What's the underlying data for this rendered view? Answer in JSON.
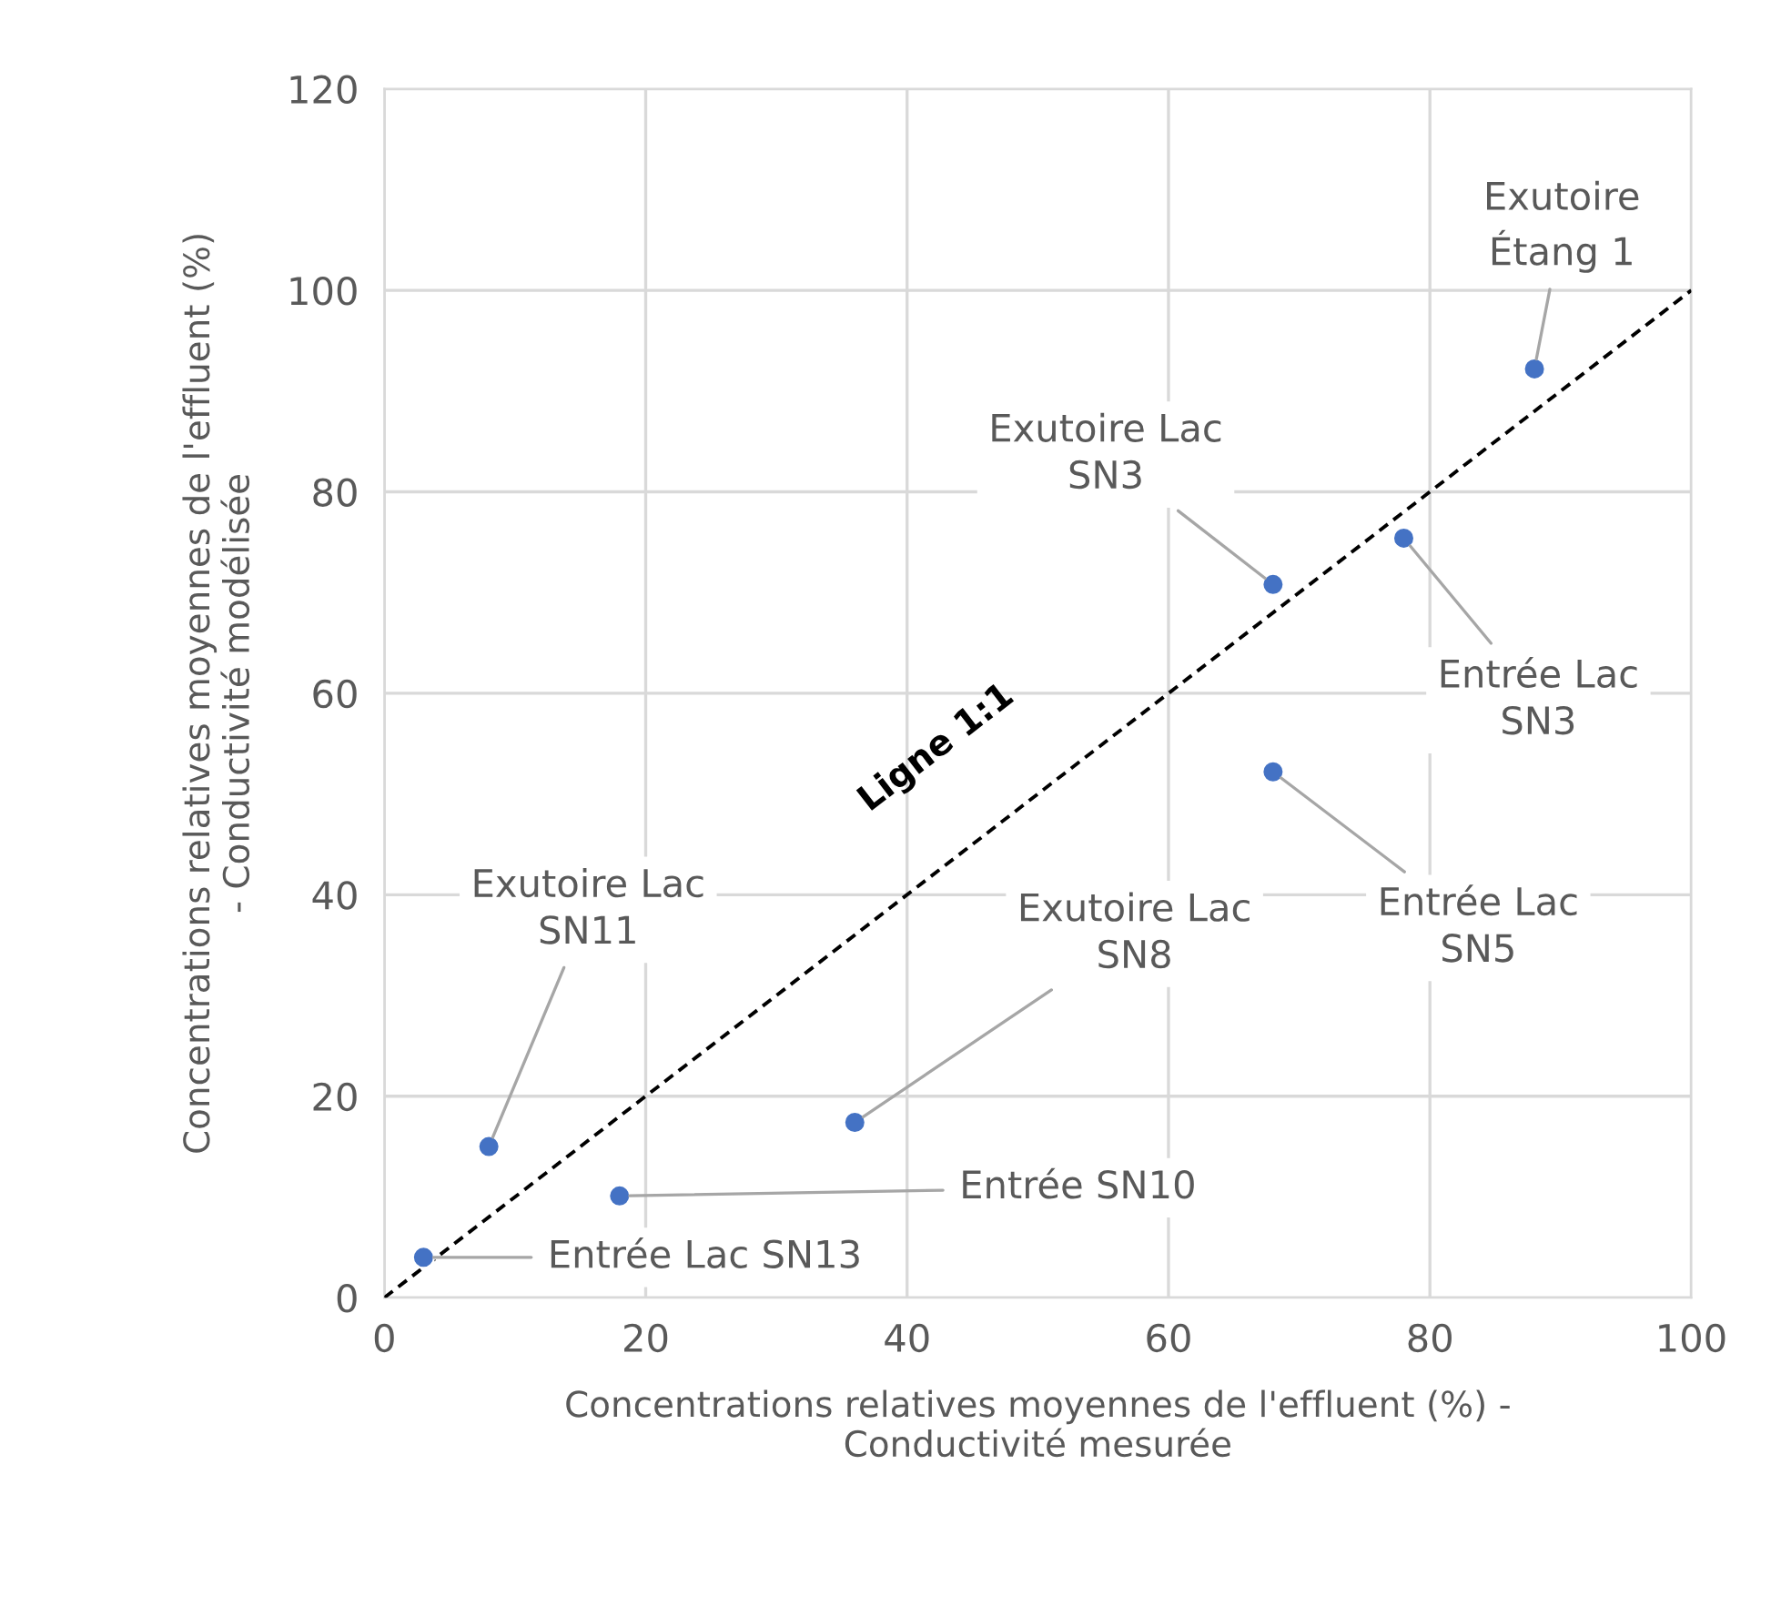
{
  "chart_data": {
    "type": "scatter",
    "xlabel": "Concentrations relatives moyennes de l'effluent (%) -\nConductivité mesurée",
    "ylabel": "Concentrations relatives moyennes de l'effluent (%)\n- Conductivité modélisée",
    "series": [
      {
        "color": "#4472c4",
        "marker": "circle",
        "x": [
          3,
          8,
          18,
          36,
          68,
          68,
          78,
          88
        ],
        "values": [
          4.0,
          15,
          10.1,
          17.4,
          70.8,
          52.2,
          75.4,
          92.2
        ]
      },
      {
        "type": "line",
        "name": "Ligne 1:1",
        "color": "#000000",
        "line_style": "dashed",
        "marker": "none",
        "x": [
          0,
          100
        ],
        "values": [
          0,
          100
        ]
      }
    ],
    "annotations": [
      {
        "text": "Entrée Lac SN13",
        "x": 3,
        "y": 4.0
      },
      {
        "text": "Exutoire Lac\nSN11",
        "x": 8,
        "y": 15
      },
      {
        "text": "Entrée SN10",
        "x": 18,
        "y": 10.1
      },
      {
        "text": "Exutoire Lac\nSN8",
        "x": 36,
        "y": 17.4
      },
      {
        "text": "Exutoire Lac\nSN3",
        "x": 68,
        "y": 70.8
      },
      {
        "text": "Entrée Lac\nSN5",
        "x": 68,
        "y": 52.2
      },
      {
        "text": "Entrée Lac\nSN3",
        "x": 78,
        "y": 75.4
      },
      {
        "text": "Exutoire\nÉtang 1",
        "x": 88,
        "y": 92.2
      }
    ],
    "xlim": [
      0,
      100
    ],
    "xticks": [
      0,
      20,
      40,
      60,
      80,
      100
    ],
    "ylim": [
      0,
      120
    ],
    "yticks": [
      0,
      20,
      40,
      60,
      80,
      100,
      120
    ],
    "grid": true,
    "legend": false
  }
}
